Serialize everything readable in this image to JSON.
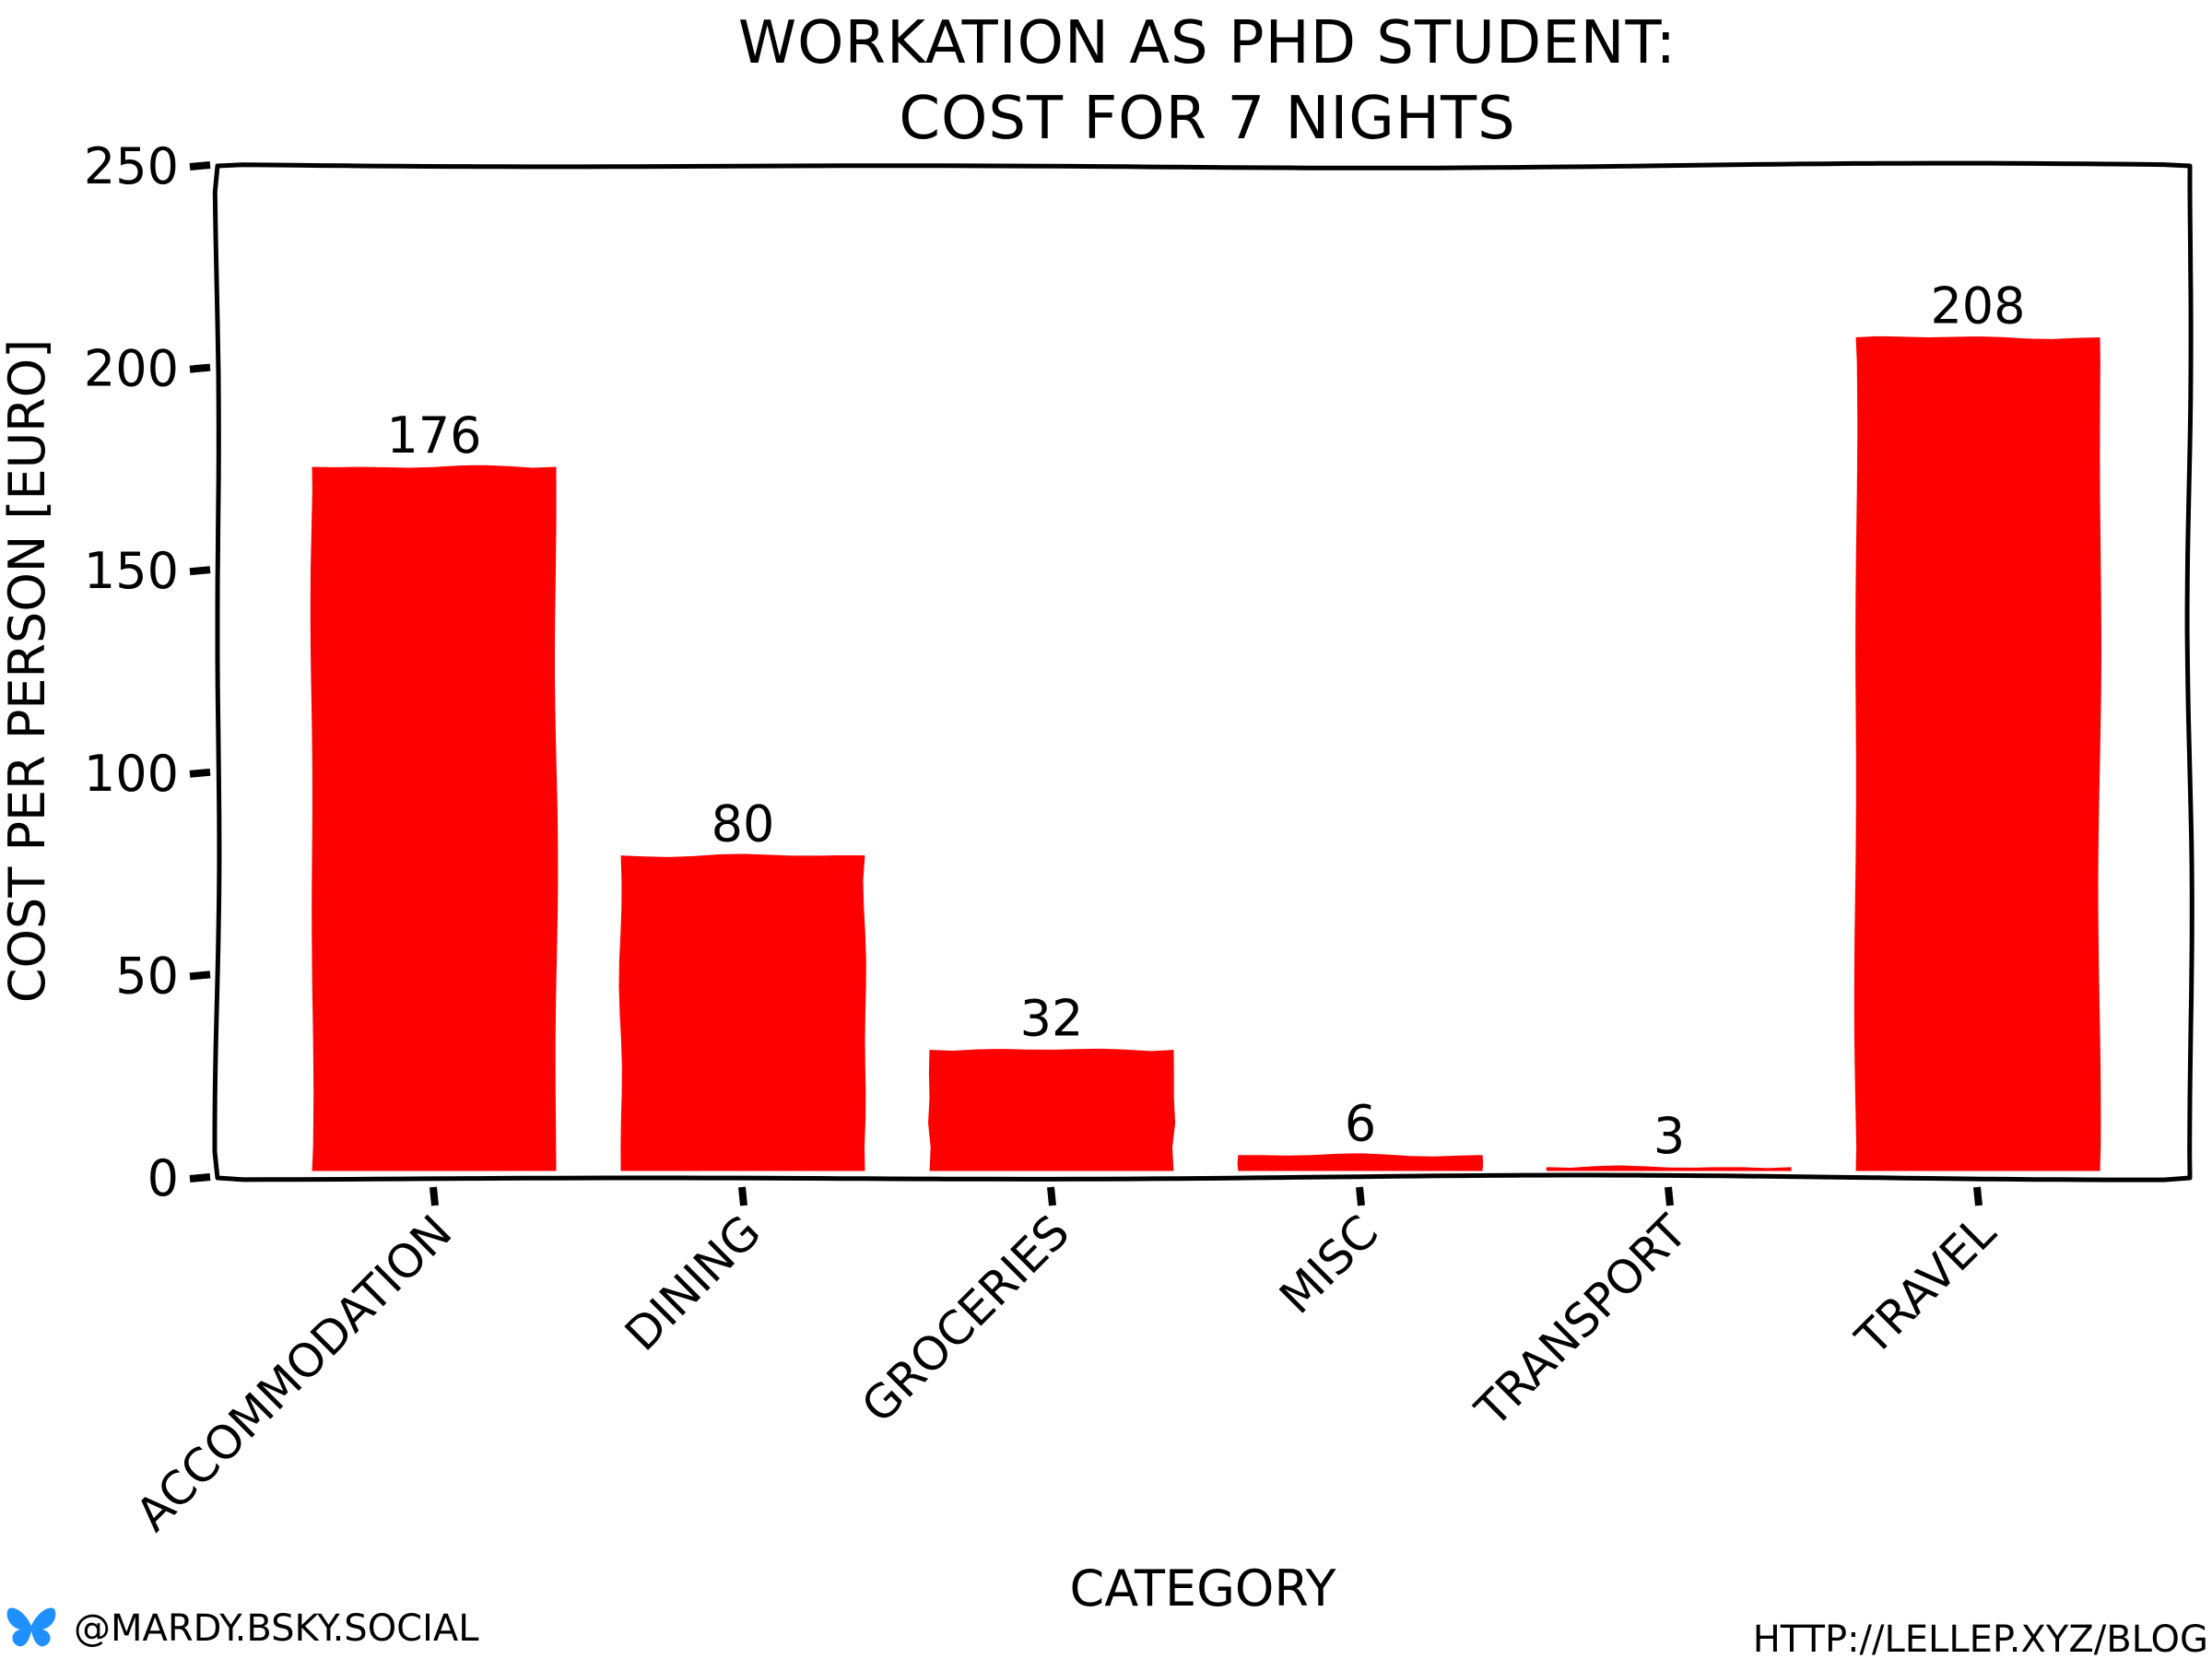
{
  "chart_data": {
    "type": "bar",
    "title": "WORKATION AS PHD STUDENT:",
    "subtitle": "COST FOR 7 NIGHTS",
    "xlabel": "CATEGORY",
    "ylabel": "COST PER PERSON [EURO]",
    "categories": [
      "ACCOMMODATION",
      "DINING",
      "GROCERIES",
      "MISC",
      "TRANSPORT",
      "TRAVEL"
    ],
    "values": [
      176,
      80,
      32,
      6,
      3,
      208
    ],
    "value_labels": [
      "176",
      "80",
      "32",
      "6",
      "3",
      "208"
    ],
    "ylim": [
      0,
      250
    ],
    "yticks": [
      "0",
      "50",
      "100",
      "150",
      "200",
      "250"
    ],
    "bar_color": "#ff0000",
    "grid": false,
    "style": "xkcd"
  },
  "credits": {
    "handle": "@MARDY.BSKY.SOCIAL",
    "url": "HTTP://LELLEP.XYZ/BLOG",
    "icon": "butterfly-icon",
    "icon_color": "#1e90ff"
  }
}
